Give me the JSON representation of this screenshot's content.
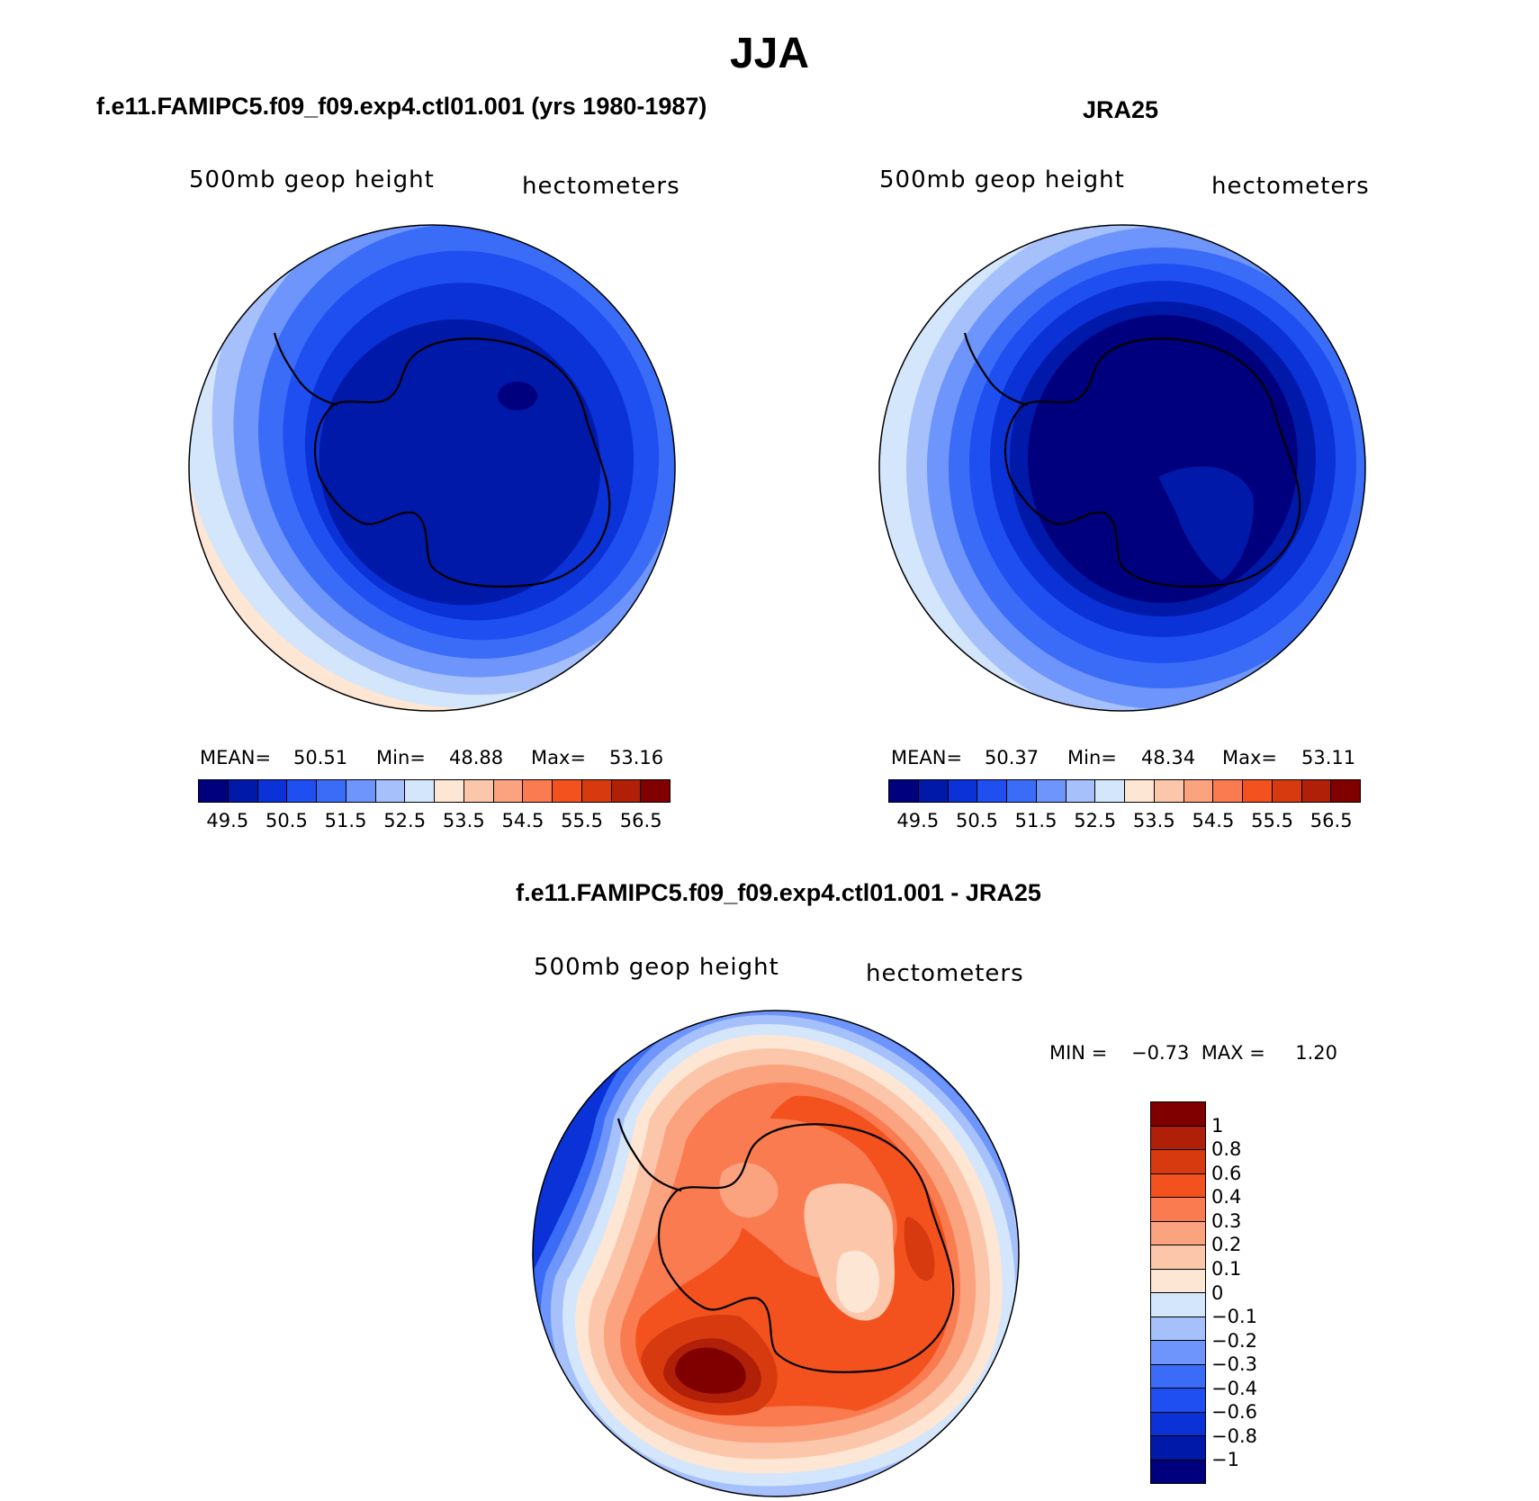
{
  "title": "JJA",
  "colors": {
    "abs_scale": [
      "#00007f",
      "#0019a8",
      "#0a32d7",
      "#1f4ff0",
      "#3b6cf7",
      "#6e95fb",
      "#a5c0fb",
      "#d3e6fb",
      "#fde6d3",
      "#fcc6aa",
      "#fba27f",
      "#f97b4f",
      "#f3521e",
      "#d63a0e",
      "#b01f08",
      "#800000"
    ],
    "diff_scale": [
      "#800000",
      "#b01f08",
      "#d63a0e",
      "#f3521e",
      "#f97b4f",
      "#fba27f",
      "#fcc6aa",
      "#fde6d3",
      "#d3e6fb",
      "#a5c0fb",
      "#6e95fb",
      "#3b6cf7",
      "#1f4ff0",
      "#0a32d7",
      "#0019a8",
      "#00007f"
    ]
  },
  "panels": [
    {
      "title": "f.e11.FAMIPC5.f09_f09.exp4.ctl01.001 (yrs 1980-1987)",
      "variable": "500mb  geop  height",
      "units": "hectometers",
      "stats": {
        "mean_label": "MEAN=",
        "mean": "50.51",
        "min_label": "Min=",
        "min": "48.88",
        "max_label": "Max=",
        "max": "53.16"
      },
      "cbar_ticks": [
        "49.5",
        "50.5",
        "51.5",
        "52.5",
        "53.5",
        "54.5",
        "55.5",
        "56.5"
      ]
    },
    {
      "title": "JRA25",
      "variable": "500mb  geop  height",
      "units": "hectometers",
      "stats": {
        "mean_label": "MEAN=",
        "mean": "50.37",
        "min_label": "Min=",
        "min": "48.34",
        "max_label": "Max=",
        "max": "53.11"
      },
      "cbar_ticks": [
        "49.5",
        "50.5",
        "51.5",
        "52.5",
        "53.5",
        "54.5",
        "55.5",
        "56.5"
      ]
    }
  ],
  "diff_panel": {
    "title": "f.e11.FAMIPC5.f09_f09.exp4.ctl01.001 - JRA25",
    "variable": "500mb  geop  height",
    "units": "hectometers",
    "minmax": "MIN =    −0.73  MAX =     1.20",
    "cbar_ticks": [
      "1",
      "0.8",
      "0.6",
      "0.4",
      "0.3",
      "0.2",
      "0.1",
      "0",
      "−0.1",
      "−0.2",
      "−0.3",
      "−0.4",
      "−0.6",
      "−0.8",
      "−1"
    ]
  }
}
